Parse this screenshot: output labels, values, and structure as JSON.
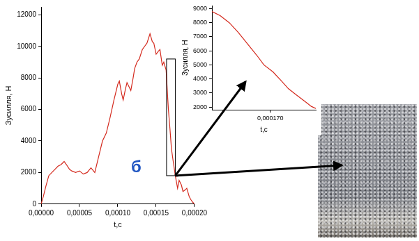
{
  "chart_data": [
    {
      "type": "line",
      "x_label": "t,c",
      "y_label": "Зусилля, Н",
      "annotation": "б",
      "color": "#d42a1e",
      "grid": false,
      "x": [
        0,
        3e-06,
        6e-06,
        1e-05,
        1.4e-05,
        1.8e-05,
        2.2e-05,
        2.6e-05,
        3e-05,
        3.3e-05,
        3.7e-05,
        4e-05,
        4.5e-05,
        5e-05,
        5.5e-05,
        6e-05,
        6.5e-05,
        7e-05,
        7.5e-05,
        8e-05,
        8.5e-05,
        9e-05,
        9.5e-05,
        0.0001,
        0.000102,
        0.000105,
        0.000107,
        0.00011,
        0.000112,
        0.000115,
        0.000117,
        0.00012,
        0.000122,
        0.000125,
        0.000128,
        0.000132,
        0.000135,
        0.000138,
        0.000142,
        0.000145,
        0.000147,
        0.00015,
        0.000153,
        0.000155,
        0.000158,
        0.00016,
        0.000163,
        0.000166,
        0.000168,
        0.00017,
        0.000172,
        0.000175,
        0.000178,
        0.00018,
        0.000183,
        0.000185,
        0.000188,
        0.00019,
        0.000193,
        0.000195,
        0.000198,
        0.0002
      ],
      "values": [
        0,
        500,
        1100,
        1800,
        2000,
        2200,
        2400,
        2500,
        2700,
        2500,
        2200,
        2100,
        2000,
        2100,
        1900,
        2000,
        2300,
        2000,
        3000,
        4000,
        4500,
        5500,
        6600,
        7600,
        7800,
        7000,
        6600,
        7300,
        7700,
        7400,
        7200,
        8000,
        8600,
        9000,
        9200,
        9800,
        10000,
        10200,
        10800,
        10300,
        10200,
        9500,
        9700,
        9800,
        8800,
        9000,
        8500,
        6000,
        4800,
        3500,
        2800,
        1800,
        1000,
        1500,
        1200,
        800,
        900,
        1000,
        500,
        300,
        100,
        0
      ],
      "xlim": [
        0,
        0.0002
      ],
      "xticks": [
        {
          "value": 0,
          "label": "0,00000"
        },
        {
          "value": 5e-05,
          "label": "0,00005"
        },
        {
          "value": 0.0001,
          "label": "0,00010"
        },
        {
          "value": 0.00015,
          "label": "0,00015"
        },
        {
          "value": 0.0002,
          "label": "0,00020"
        }
      ],
      "ylim": [
        0,
        12500
      ],
      "yticks": [
        0,
        2000,
        4000,
        6000,
        8000,
        10000,
        12000
      ]
    },
    {
      "type": "line",
      "x_label": "t,c",
      "y_label": "Зусилля, Н",
      "color": "#d42a1e",
      "grid": false,
      "x": [
        0.0001636,
        0.0001645,
        0.0001655,
        0.0001665,
        0.0001675,
        0.0001685,
        0.0001693,
        0.0001703,
        0.0001713,
        0.000172,
        0.0001728,
        0.0001735,
        0.000174,
        0.0001745,
        0.000175
      ],
      "values": [
        8800,
        8500,
        8000,
        7300,
        6500,
        5700,
        5000,
        4500,
        3800,
        3300,
        2900,
        2550,
        2300,
        2050,
        1900
      ],
      "xlim": [
        0.0001636,
        0.000175
      ],
      "xticks": [
        {
          "value": 0.00017,
          "label": "0,000170"
        }
      ],
      "ylim": [
        1800,
        9200
      ],
      "yticks": [
        2000,
        3000,
        4000,
        5000,
        6000,
        7000,
        8000,
        9000
      ]
    }
  ]
}
